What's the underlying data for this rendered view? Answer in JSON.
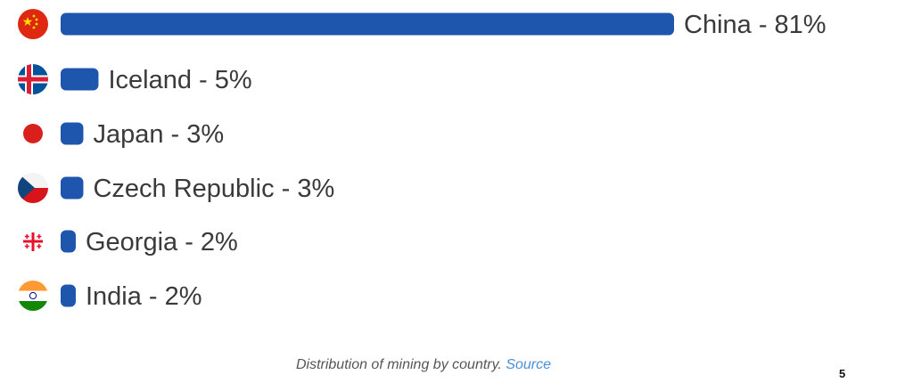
{
  "chart_data": {
    "type": "bar",
    "orientation": "horizontal",
    "categories": [
      "China",
      "Iceland",
      "Japan",
      "Czech Republic",
      "Georgia",
      "India"
    ],
    "values": [
      81,
      5,
      3,
      3,
      2,
      2
    ],
    "data_labels": [
      "China - 81%",
      "Iceland - 5%",
      "Japan - 3%",
      "Czech Republic - 3%",
      "Georgia - 2%",
      "India - 2%"
    ],
    "flags": [
      "china-flag-icon",
      "iceland-flag-icon",
      "japan-flag-icon",
      "czech-flag-icon",
      "georgia-flag-icon",
      "india-flag-icon"
    ],
    "unit": "%",
    "bar_color": "#1f56ad",
    "grid": false,
    "legend": "none"
  },
  "caption": {
    "text": "Distribution of mining by country.",
    "source_label": "Source"
  },
  "page_number": "5"
}
